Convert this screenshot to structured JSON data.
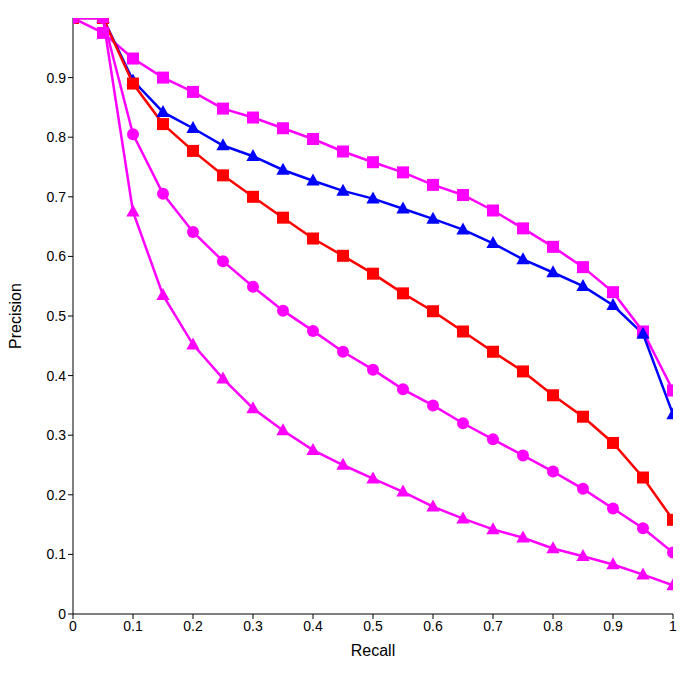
{
  "chart_data": {
    "type": "line",
    "x_label": "Recall",
    "y_label": "Precision",
    "x": [
      0,
      0.05,
      0.1,
      0.15,
      0.2,
      0.25,
      0.3,
      0.35,
      0.4,
      0.45,
      0.5,
      0.55,
      0.6,
      0.65,
      0.7,
      0.75,
      0.8,
      0.85,
      0.9,
      0.95,
      1
    ],
    "xlim": [
      0,
      1
    ],
    "xticks": [
      0,
      0.1,
      0.2,
      0.3,
      0.4,
      0.5,
      0.6,
      0.7,
      0.8,
      0.9,
      1
    ],
    "ylim": [
      0,
      1
    ],
    "yticks": [
      0,
      0.1,
      0.2,
      0.3,
      0.4,
      0.5,
      0.6,
      0.7,
      0.8,
      0.9
    ],
    "grid": false,
    "series": [
      {
        "color": "#ff00ff",
        "marker": "square",
        "values": [
          1,
          0.975,
          0.932,
          0.9,
          0.876,
          0.848,
          0.833,
          0.815,
          0.797,
          0.776,
          0.758,
          0.741,
          0.72,
          0.703,
          0.677,
          0.647,
          0.616,
          0.582,
          0.54,
          0.474,
          0.375
        ]
      },
      {
        "color": "#0000ff",
        "marker": "triangle",
        "values": [
          1,
          1,
          0.895,
          0.842,
          0.815,
          0.786,
          0.768,
          0.745,
          0.727,
          0.71,
          0.697,
          0.68,
          0.663,
          0.645,
          0.622,
          0.595,
          0.573,
          0.55,
          0.518,
          0.47,
          0.335
        ]
      },
      {
        "color": "#ff0000",
        "marker": "square",
        "values": [
          1,
          1,
          0.89,
          0.822,
          0.777,
          0.736,
          0.7,
          0.665,
          0.63,
          0.601,
          0.571,
          0.538,
          0.508,
          0.474,
          0.44,
          0.407,
          0.367,
          0.331,
          0.287,
          0.229,
          0.158
        ]
      },
      {
        "color": "#ff00ff",
        "marker": "circle",
        "values": [
          1,
          1,
          0.805,
          0.705,
          0.641,
          0.592,
          0.549,
          0.509,
          0.475,
          0.44,
          0.41,
          0.377,
          0.35,
          0.32,
          0.293,
          0.266,
          0.239,
          0.21,
          0.177,
          0.144,
          0.103
        ]
      },
      {
        "color": "#ff00ff",
        "marker": "triangle",
        "values": [
          1,
          1,
          0.675,
          0.535,
          0.452,
          0.395,
          0.345,
          0.308,
          0.275,
          0.25,
          0.227,
          0.205,
          0.18,
          0.16,
          0.142,
          0.128,
          0.11,
          0.097,
          0.083,
          0.066,
          0.048
        ]
      }
    ]
  }
}
